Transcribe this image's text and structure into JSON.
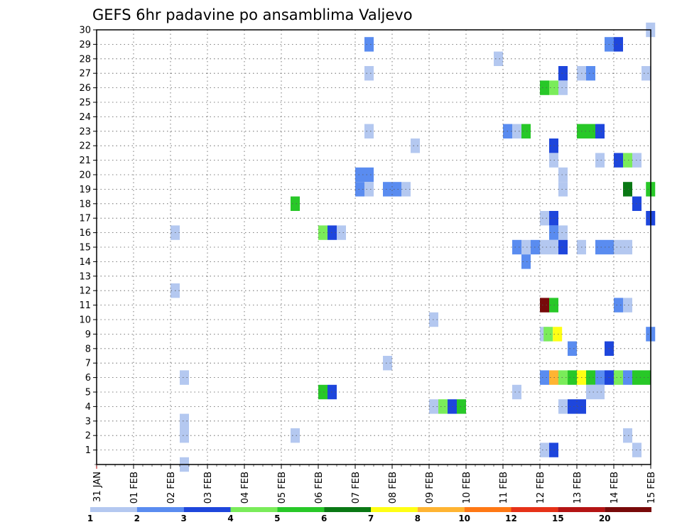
{
  "chart_data": {
    "type": "heatmap",
    "title": "GEFS 6hr padavine po ansamblima Valjevo",
    "x_tick_labels": [
      "31 JAN",
      "01 FEB",
      "02 FEB",
      "03 FEB",
      "04 FEB",
      "05 FEB",
      "06 FEB",
      "07 FEB",
      "08 FEB",
      "09 FEB",
      "10 FEB",
      "11 FEB",
      "12 FEB",
      "13 FEB",
      "14 FEB",
      "15 FEB"
    ],
    "y_tick_labels": [
      "1",
      "2",
      "3",
      "4",
      "5",
      "6",
      "7",
      "8",
      "9",
      "10",
      "11",
      "12",
      "13",
      "14",
      "15",
      "16",
      "17",
      "18",
      "19",
      "20",
      "21",
      "22",
      "23",
      "24",
      "25",
      "26",
      "27",
      "28",
      "29",
      "30"
    ],
    "x_range_days": [
      0,
      15
    ],
    "y_range": [
      0,
      30
    ],
    "time_step_hours": 6,
    "grid": true,
    "colorbar": {
      "levels": [
        "1",
        "2",
        "3",
        "4",
        "5",
        "6",
        "7",
        "8",
        "10",
        "12",
        "15",
        "20"
      ],
      "colors": [
        "#b4c8f0",
        "#5a8cf0",
        "#1e46dc",
        "#7aec5a",
        "#28c828",
        "#0a7814",
        "#ffff14",
        "#ffb432",
        "#ff7814",
        "#e63218",
        "#b41414",
        "#780a0a"
      ]
    },
    "cells_note": "each cell: member m, start day d (days after 31 JAN 00Z), n = number of consecutive 6h steps, c = color class 1..12",
    "cells": [
      {
        "m": 30,
        "d": 14.87,
        "n": 1,
        "c": 1
      },
      {
        "m": 29,
        "d": 7.25,
        "n": 1,
        "c": 2
      },
      {
        "m": 29,
        "d": 13.75,
        "n": 1,
        "c": 2
      },
      {
        "m": 29,
        "d": 14,
        "n": 1,
        "c": 3
      },
      {
        "m": 28,
        "d": 10.75,
        "n": 1,
        "c": 1
      },
      {
        "m": 27,
        "d": 7.25,
        "n": 1,
        "c": 1
      },
      {
        "m": 27,
        "d": 12.5,
        "n": 1,
        "c": 3
      },
      {
        "m": 27,
        "d": 13,
        "n": 1,
        "c": 1
      },
      {
        "m": 27,
        "d": 13.25,
        "n": 1,
        "c": 2
      },
      {
        "m": 27,
        "d": 14.75,
        "n": 1,
        "c": 1
      },
      {
        "m": 26,
        "d": 12,
        "n": 1,
        "c": 5
      },
      {
        "m": 26,
        "d": 12.25,
        "n": 1,
        "c": 4
      },
      {
        "m": 26,
        "d": 12.5,
        "n": 1,
        "c": 1
      },
      {
        "m": 23,
        "d": 7.25,
        "n": 1,
        "c": 1
      },
      {
        "m": 23,
        "d": 11,
        "n": 1,
        "c": 2
      },
      {
        "m": 23,
        "d": 11.25,
        "n": 1,
        "c": 1
      },
      {
        "m": 23,
        "d": 11.5,
        "n": 1,
        "c": 5
      },
      {
        "m": 23,
        "d": 13,
        "n": 2,
        "c": 5
      },
      {
        "m": 23,
        "d": 13.5,
        "n": 1,
        "c": 3
      },
      {
        "m": 22,
        "d": 8.5,
        "n": 1,
        "c": 1
      },
      {
        "m": 22,
        "d": 12.25,
        "n": 1,
        "c": 3
      },
      {
        "m": 21,
        "d": 12.25,
        "n": 1,
        "c": 1
      },
      {
        "m": 21,
        "d": 13.5,
        "n": 1,
        "c": 1
      },
      {
        "m": 21,
        "d": 14,
        "n": 1,
        "c": 3
      },
      {
        "m": 21,
        "d": 14.25,
        "n": 1,
        "c": 4
      },
      {
        "m": 21,
        "d": 14.5,
        "n": 1,
        "c": 1
      },
      {
        "m": 20,
        "d": 7,
        "n": 2,
        "c": 2
      },
      {
        "m": 20,
        "d": 12.5,
        "n": 1,
        "c": 1
      },
      {
        "m": 19,
        "d": 7,
        "n": 1,
        "c": 2
      },
      {
        "m": 19,
        "d": 7.25,
        "n": 1,
        "c": 1
      },
      {
        "m": 19,
        "d": 7.75,
        "n": 2,
        "c": 2
      },
      {
        "m": 19,
        "d": 8.25,
        "n": 1,
        "c": 1
      },
      {
        "m": 19,
        "d": 12.5,
        "n": 1,
        "c": 1
      },
      {
        "m": 19,
        "d": 14.25,
        "n": 1,
        "c": 6
      },
      {
        "m": 19,
        "d": 14.87,
        "n": 1,
        "c": 5
      },
      {
        "m": 18,
        "d": 5.25,
        "n": 1,
        "c": 5
      },
      {
        "m": 18,
        "d": 14.5,
        "n": 1,
        "c": 3
      },
      {
        "m": 17,
        "d": 12,
        "n": 1,
        "c": 1
      },
      {
        "m": 17,
        "d": 12.25,
        "n": 1,
        "c": 3
      },
      {
        "m": 17,
        "d": 14.87,
        "n": 1,
        "c": 3
      },
      {
        "m": 16,
        "d": 2,
        "n": 1,
        "c": 1
      },
      {
        "m": 16,
        "d": 6,
        "n": 1,
        "c": 4
      },
      {
        "m": 16,
        "d": 6.25,
        "n": 1,
        "c": 3
      },
      {
        "m": 16,
        "d": 6.5,
        "n": 1,
        "c": 1
      },
      {
        "m": 16,
        "d": 12.25,
        "n": 1,
        "c": 2
      },
      {
        "m": 16,
        "d": 12.5,
        "n": 1,
        "c": 1
      },
      {
        "m": 15,
        "d": 11.25,
        "n": 1,
        "c": 2
      },
      {
        "m": 15,
        "d": 11.5,
        "n": 1,
        "c": 1
      },
      {
        "m": 15,
        "d": 11.75,
        "n": 1,
        "c": 2
      },
      {
        "m": 15,
        "d": 12,
        "n": 2,
        "c": 1
      },
      {
        "m": 15,
        "d": 12.5,
        "n": 1,
        "c": 3
      },
      {
        "m": 15,
        "d": 13,
        "n": 1,
        "c": 1
      },
      {
        "m": 15,
        "d": 13.5,
        "n": 2,
        "c": 2
      },
      {
        "m": 15,
        "d": 14,
        "n": 2,
        "c": 1
      },
      {
        "m": 14,
        "d": 11.5,
        "n": 1,
        "c": 2
      },
      {
        "m": 12,
        "d": 2,
        "n": 1,
        "c": 1
      },
      {
        "m": 11,
        "d": 12,
        "n": 1,
        "c": 12
      },
      {
        "m": 11,
        "d": 12.25,
        "n": 1,
        "c": 5
      },
      {
        "m": 11,
        "d": 14,
        "n": 1,
        "c": 2
      },
      {
        "m": 11,
        "d": 14.25,
        "n": 1,
        "c": 1
      },
      {
        "m": 10,
        "d": 9,
        "n": 1,
        "c": 1
      },
      {
        "m": 9,
        "d": 12,
        "n": 1,
        "c": 1
      },
      {
        "m": 9,
        "d": 12.1,
        "n": 1,
        "c": 4
      },
      {
        "m": 9,
        "d": 12.35,
        "n": 1,
        "c": 7
      },
      {
        "m": 9,
        "d": 14.87,
        "n": 1,
        "c": 2
      },
      {
        "m": 8,
        "d": 12.75,
        "n": 1,
        "c": 2
      },
      {
        "m": 8,
        "d": 13.75,
        "n": 1,
        "c": 3
      },
      {
        "m": 7,
        "d": 7.75,
        "n": 1,
        "c": 1
      },
      {
        "m": 6,
        "d": 2.25,
        "n": 1,
        "c": 1
      },
      {
        "m": 6,
        "d": 12,
        "n": 1,
        "c": 2
      },
      {
        "m": 6,
        "d": 12.25,
        "n": 1,
        "c": 8
      },
      {
        "m": 6,
        "d": 12.5,
        "n": 1,
        "c": 4
      },
      {
        "m": 6,
        "d": 12.75,
        "n": 1,
        "c": 5
      },
      {
        "m": 6,
        "d": 13,
        "n": 1,
        "c": 7
      },
      {
        "m": 6,
        "d": 13.25,
        "n": 1,
        "c": 5
      },
      {
        "m": 6,
        "d": 13.5,
        "n": 1,
        "c": 2
      },
      {
        "m": 6,
        "d": 13.75,
        "n": 1,
        "c": 3
      },
      {
        "m": 6,
        "d": 14,
        "n": 1,
        "c": 4
      },
      {
        "m": 6,
        "d": 14.25,
        "n": 1,
        "c": 2
      },
      {
        "m": 6,
        "d": 14.5,
        "n": 1,
        "c": 5
      },
      {
        "m": 6,
        "d": 14.75,
        "n": 1,
        "c": 5
      },
      {
        "m": 5,
        "d": 6,
        "n": 1,
        "c": 5
      },
      {
        "m": 5,
        "d": 6.25,
        "n": 1,
        "c": 3
      },
      {
        "m": 5,
        "d": 11.25,
        "n": 1,
        "c": 1
      },
      {
        "m": 5,
        "d": 13.25,
        "n": 2,
        "c": 1
      },
      {
        "m": 4,
        "d": 9,
        "n": 1,
        "c": 1
      },
      {
        "m": 4,
        "d": 9.25,
        "n": 1,
        "c": 4
      },
      {
        "m": 4,
        "d": 9.5,
        "n": 1,
        "c": 3
      },
      {
        "m": 4,
        "d": 9.75,
        "n": 1,
        "c": 5
      },
      {
        "m": 4,
        "d": 12.5,
        "n": 1,
        "c": 1
      },
      {
        "m": 4,
        "d": 12.75,
        "n": 2,
        "c": 3
      },
      {
        "m": 3,
        "d": 2.25,
        "n": 1,
        "c": 1
      },
      {
        "m": 2,
        "d": 2.25,
        "n": 1,
        "c": 1
      },
      {
        "m": 2,
        "d": 5.25,
        "n": 1,
        "c": 1
      },
      {
        "m": 2,
        "d": 14.25,
        "n": 1,
        "c": 1
      },
      {
        "m": 1,
        "d": 12,
        "n": 1,
        "c": 1
      },
      {
        "m": 1,
        "d": 12.25,
        "n": 1,
        "c": 3
      },
      {
        "m": 1,
        "d": 14.5,
        "n": 1,
        "c": 1
      },
      {
        "m": 0,
        "d": 2.25,
        "n": 1,
        "c": 1
      }
    ]
  }
}
